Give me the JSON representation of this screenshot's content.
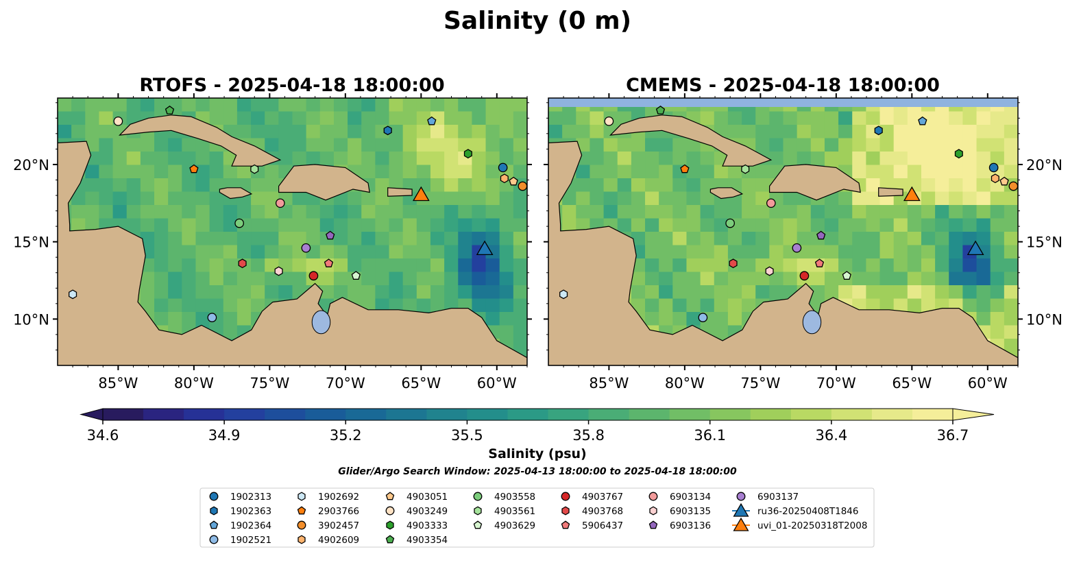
{
  "figure": {
    "title": "Salinity (0 m)",
    "search_window": "Glider/Argo Search Window: 2025-04-13 18:00:00 to 2025-04-18 18:00:00"
  },
  "panels": [
    {
      "id": "rtofs",
      "title": "RTOFS - 2025-04-18 18:00:00",
      "tick_side": "left"
    },
    {
      "id": "cmems",
      "title": "CMEMS - 2025-04-18 18:00:00",
      "tick_side": "right"
    }
  ],
  "map": {
    "lon_range": [
      -89,
      -58
    ],
    "lat_range": [
      7,
      24.3
    ],
    "x_ticks": [
      "85°W",
      "80°W",
      "75°W",
      "70°W",
      "65°W",
      "60°W"
    ],
    "x_tick_values": [
      -85,
      -80,
      -75,
      -70,
      -65,
      -60
    ],
    "y_ticks": [
      "20°N",
      "15°N",
      "10°N"
    ],
    "y_tick_values": [
      20,
      15,
      10
    ],
    "land_color": "#d2b48c",
    "lake_color": "#9db9e0",
    "pacific_color": "#2a1a66",
    "land": [
      {
        "name": "Cuba",
        "coords": [
          [
            -84.9,
            21.9
          ],
          [
            -84.2,
            22.6
          ],
          [
            -83,
            23
          ],
          [
            -81.5,
            23.2
          ],
          [
            -80.2,
            23.1
          ],
          [
            -78.5,
            22.4
          ],
          [
            -77.5,
            21.8
          ],
          [
            -76,
            21.2
          ],
          [
            -74.3,
            20.3
          ],
          [
            -75.5,
            19.9
          ],
          [
            -77.5,
            19.9
          ],
          [
            -77.2,
            20.6
          ],
          [
            -78.2,
            21.2
          ],
          [
            -79.8,
            21.7
          ],
          [
            -81.5,
            22.2
          ],
          [
            -83,
            22.1
          ]
        ]
      },
      {
        "name": "Hispaniola",
        "coords": [
          [
            -74.4,
            18.6
          ],
          [
            -73.4,
            19.9
          ],
          [
            -72,
            20
          ],
          [
            -70,
            19.8
          ],
          [
            -68.5,
            18.8
          ],
          [
            -68.4,
            18.2
          ],
          [
            -69.5,
            18.4
          ],
          [
            -71.3,
            17.7
          ],
          [
            -72.6,
            18.2
          ],
          [
            -74.4,
            18.2
          ]
        ]
      },
      {
        "name": "Jamaica",
        "coords": [
          [
            -78.3,
            18.4
          ],
          [
            -77.8,
            18.5
          ],
          [
            -76.9,
            18.5
          ],
          [
            -76.2,
            18.1
          ],
          [
            -76.8,
            17.9
          ],
          [
            -77.6,
            17.8
          ],
          [
            -78.3,
            18.2
          ]
        ]
      },
      {
        "name": "Puerto Rico",
        "coords": [
          [
            -67.2,
            18.5
          ],
          [
            -65.6,
            18.4
          ],
          [
            -65.6,
            18.0
          ],
          [
            -67.2,
            17.95
          ]
        ]
      },
      {
        "name": "Central America",
        "coords": [
          [
            -89,
            24.3
          ],
          [
            -89,
            21.4
          ],
          [
            -87.1,
            21.5
          ],
          [
            -86.8,
            20.6
          ],
          [
            -87.5,
            18.8
          ],
          [
            -88.3,
            17.5
          ],
          [
            -88.2,
            16.1
          ],
          [
            -88.2,
            15.7
          ],
          [
            -86.5,
            15.8
          ],
          [
            -85,
            16
          ],
          [
            -83.4,
            15.2
          ],
          [
            -83.2,
            14.1
          ],
          [
            -83.6,
            11.9
          ],
          [
            -83.7,
            11.1
          ],
          [
            -83.2,
            10.5
          ],
          [
            -82.3,
            9.3
          ],
          [
            -80.8,
            9
          ],
          [
            -79.5,
            9.6
          ],
          [
            -77.5,
            8.6
          ],
          [
            -76.2,
            9.3
          ],
          [
            -75.5,
            10.5
          ],
          [
            -74.8,
            11.1
          ],
          [
            -73.2,
            11.3
          ],
          [
            -72,
            12.3
          ],
          [
            -71.5,
            11.8
          ],
          [
            -71.8,
            11
          ],
          [
            -71.2,
            10.2
          ],
          [
            -71,
            11
          ],
          [
            -70.2,
            11.4
          ],
          [
            -68.5,
            10.6
          ],
          [
            -66.5,
            10.6
          ],
          [
            -64.5,
            10.4
          ],
          [
            -63,
            10.7
          ],
          [
            -61.9,
            10.7
          ],
          [
            -61,
            10.1
          ],
          [
            -60,
            8.6
          ],
          [
            -58,
            7.5
          ],
          [
            -58,
            7
          ],
          [
            -89,
            7
          ]
        ]
      }
    ],
    "pacific": [
      [
        -89,
        13.9
      ],
      [
        -87.4,
        13.2
      ],
      [
        -86,
        12
      ],
      [
        -85.6,
        11
      ],
      [
        -84.9,
        9.8
      ],
      [
        -83.2,
        8.3
      ],
      [
        -82.2,
        8.2
      ],
      [
        -80.3,
        7.4
      ],
      [
        -80,
        7
      ],
      [
        -89,
        7
      ]
    ],
    "lake": {
      "lon": -71.6,
      "lat": 9.8,
      "rx_deg": 0.6,
      "ry_deg": 0.75
    }
  },
  "colorbar": {
    "ticks": [
      "34.6",
      "34.9",
      "35.2",
      "35.5",
      "35.8",
      "36.1",
      "36.4",
      "36.7"
    ],
    "min": 34.6,
    "max": 36.7,
    "label": "Salinity (psu)",
    "colors": [
      "#281b5e",
      "#2a2480",
      "#263196",
      "#23409e",
      "#1d4e9c",
      "#195c99",
      "#196996",
      "#1c7692",
      "#20838e",
      "#238e8b",
      "#2b9a86",
      "#38a47f",
      "#4aad76",
      "#5cb56d",
      "#71be66",
      "#87c65f",
      "#a0cf5b",
      "#b9d963",
      "#d1e274",
      "#e6e98a",
      "#f5ee9a"
    ]
  },
  "markers": [
    {
      "id": "1902313",
      "shape": "circle",
      "color": "#1f77b4",
      "lon": -59.6,
      "lat": 19.8
    },
    {
      "id": "1902363",
      "shape": "hexagon",
      "color": "#1f77b4",
      "lon": -67.2,
      "lat": 22.2
    },
    {
      "id": "1902364",
      "shape": "pentagon",
      "color": "#63a6d9",
      "lon": -64.3,
      "lat": 22.8
    },
    {
      "id": "1902521",
      "shape": "circle",
      "color": "#8fbbe6",
      "lon": -78.8,
      "lat": 10.1
    },
    {
      "id": "1902692",
      "shape": "hexagon",
      "color": "#cde8f5",
      "lon": -88,
      "lat": 11.6
    },
    {
      "id": "2903766",
      "shape": "pentagon",
      "color": "#ff7f0e",
      "lon": -80,
      "lat": 19.7
    },
    {
      "id": "3902457",
      "shape": "circle",
      "color": "#f28e2b",
      "lon": -58.3,
      "lat": 18.6
    },
    {
      "id": "4902609",
      "shape": "hexagon",
      "color": "#ffb46e",
      "lon": -59.5,
      "lat": 19.1
    },
    {
      "id": "4903051",
      "shape": "pentagon",
      "color": "#ffc98c",
      "lon": -58.9,
      "lat": 18.9
    },
    {
      "id": "4903249",
      "shape": "circle",
      "color": "#ffe2c4",
      "lon": -85,
      "lat": 22.8
    },
    {
      "id": "4903333",
      "shape": "hexagon",
      "color": "#2ca02c",
      "lon": -61.9,
      "lat": 20.7
    },
    {
      "id": "4903354",
      "shape": "pentagon",
      "color": "#4caf50",
      "lon": -81.6,
      "lat": 23.5
    },
    {
      "id": "4903558",
      "shape": "circle",
      "color": "#7ccd7c",
      "lon": -77,
      "lat": 16.2
    },
    {
      "id": "4903561",
      "shape": "hexagon",
      "color": "#a6e39c",
      "lon": -76,
      "lat": 19.7
    },
    {
      "id": "4903629",
      "shape": "pentagon",
      "color": "#d7f5d0",
      "lon": -69.3,
      "lat": 12.8
    },
    {
      "id": "4903767",
      "shape": "circle",
      "color": "#d62728",
      "lon": -72.1,
      "lat": 12.8
    },
    {
      "id": "4903768",
      "shape": "hexagon",
      "color": "#e34a4a",
      "lon": -76.8,
      "lat": 13.6
    },
    {
      "id": "5906437",
      "shape": "pentagon",
      "color": "#f07a7a",
      "lon": -71.1,
      "lat": 13.6
    },
    {
      "id": "6903134",
      "shape": "circle",
      "color": "#f29b9b",
      "lon": -74.3,
      "lat": 17.5
    },
    {
      "id": "6903135",
      "shape": "hexagon",
      "color": "#fcd2d2",
      "lon": -74.4,
      "lat": 13.1
    },
    {
      "id": "6903136",
      "shape": "pentagon",
      "color": "#9467bd",
      "lon": -71,
      "lat": 15.4
    },
    {
      "id": "6903137",
      "shape": "circle",
      "color": "#a87fd1",
      "lon": -72.6,
      "lat": 14.6
    },
    {
      "id": "ru36-20250408T1846",
      "shape": "triangle",
      "color": "#1f77b4",
      "lon": -60.8,
      "lat": 14.6
    },
    {
      "id": "uvi_01-20250318T2008",
      "shape": "triangle",
      "color": "#ff7f0e",
      "lon": -65,
      "lat": 18.1
    }
  ]
}
